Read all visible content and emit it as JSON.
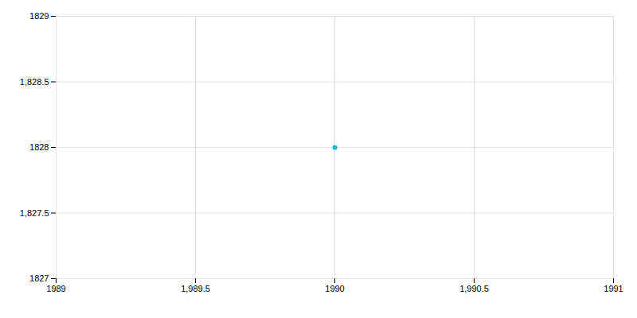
{
  "chart_data": {
    "type": "scatter",
    "x": [
      1990
    ],
    "values": [
      1828
    ],
    "color": "#00bcd4",
    "xlim": [
      1989,
      1991
    ],
    "xticks": [
      1989,
      {
        "value": 1989.5,
        "label": "1,989.5"
      },
      1990,
      {
        "value": 1990.5,
        "label": "1,990.5"
      },
      1991
    ],
    "ylim": [
      1827,
      1829
    ],
    "yticks": [
      1827,
      {
        "value": 1827.5,
        "label": "1,827.5"
      },
      1828,
      {
        "value": 1828.5,
        "label": "1,828.5"
      },
      1829
    ],
    "grid": true
  }
}
